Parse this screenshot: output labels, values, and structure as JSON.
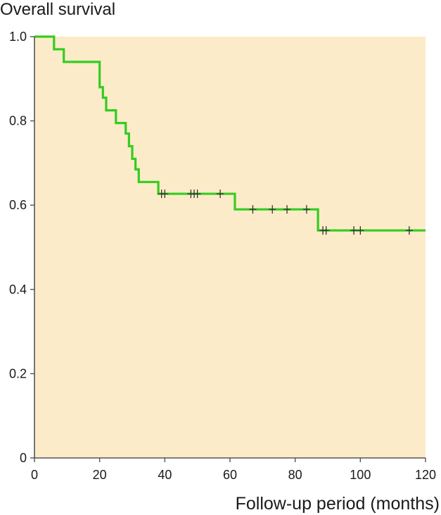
{
  "chart_data": {
    "type": "line",
    "title": "Overall survival",
    "xlabel": "Follow-up period (months)",
    "ylabel": "",
    "xlim": [
      0,
      120
    ],
    "ylim": [
      0,
      1.0
    ],
    "x_ticks": [
      "0",
      "20",
      "40",
      "60",
      "80",
      "100",
      "120"
    ],
    "y_ticks": [
      "0",
      "0.2",
      "0.4",
      "0.6",
      "0.8",
      "1.0"
    ],
    "grid": false,
    "plot_background": "#fcebc8",
    "line_color": "#33cc22",
    "censor_color": "#333333",
    "series": [
      {
        "step_points": [
          [
            0,
            1.0
          ],
          [
            6,
            1.0
          ],
          [
            6,
            0.97
          ],
          [
            9,
            0.97
          ],
          [
            9,
            0.94
          ],
          [
            20,
            0.94
          ],
          [
            20,
            0.88
          ],
          [
            21,
            0.88
          ],
          [
            21,
            0.855
          ],
          [
            22,
            0.855
          ],
          [
            22,
            0.825
          ],
          [
            25,
            0.825
          ],
          [
            25,
            0.795
          ],
          [
            28,
            0.795
          ],
          [
            28,
            0.77
          ],
          [
            29,
            0.77
          ],
          [
            29,
            0.74
          ],
          [
            30,
            0.74
          ],
          [
            30,
            0.71
          ],
          [
            31,
            0.71
          ],
          [
            31,
            0.685
          ],
          [
            32,
            0.685
          ],
          [
            32,
            0.655
          ],
          [
            38,
            0.655
          ],
          [
            38,
            0.627
          ],
          [
            61.5,
            0.627
          ],
          [
            61.5,
            0.59
          ],
          [
            87,
            0.59
          ],
          [
            87,
            0.54
          ],
          [
            120,
            0.54
          ]
        ],
        "censored": [
          [
            39,
            0.627
          ],
          [
            40,
            0.627
          ],
          [
            48,
            0.627
          ],
          [
            49,
            0.627
          ],
          [
            50,
            0.627
          ],
          [
            57,
            0.627
          ],
          [
            67,
            0.59
          ],
          [
            73,
            0.59
          ],
          [
            77.5,
            0.59
          ],
          [
            83.5,
            0.59
          ],
          [
            88.5,
            0.54
          ],
          [
            89.5,
            0.54
          ],
          [
            98,
            0.54
          ],
          [
            100,
            0.54
          ],
          [
            115,
            0.54
          ]
        ]
      }
    ]
  }
}
